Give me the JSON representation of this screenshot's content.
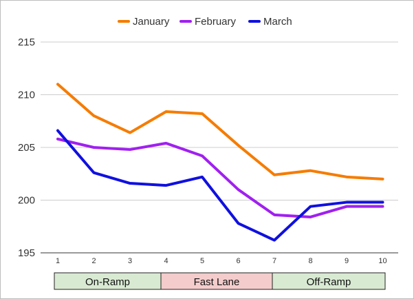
{
  "chart_data": {
    "type": "line",
    "title": "",
    "xlabel": "",
    "ylabel": "",
    "x": [
      1,
      2,
      3,
      4,
      5,
      6,
      7,
      8,
      9,
      10
    ],
    "ylim": [
      195,
      215
    ],
    "yticks": [
      195,
      200,
      205,
      210,
      215
    ],
    "grid": "horizontal",
    "legend": "top-center",
    "series": [
      {
        "name": "January",
        "color": "#f57c00",
        "values": [
          211.0,
          208.0,
          206.4,
          208.4,
          208.2,
          205.2,
          202.4,
          202.8,
          202.2,
          202.0
        ]
      },
      {
        "name": "February",
        "color": "#a020f0",
        "values": [
          205.8,
          205.0,
          204.8,
          205.4,
          204.2,
          201.0,
          198.6,
          198.4,
          199.4,
          199.4
        ]
      },
      {
        "name": "March",
        "color": "#1010e0",
        "values": [
          206.6,
          202.6,
          201.6,
          201.4,
          202.2,
          197.8,
          196.2,
          199.4,
          199.8,
          199.8
        ]
      }
    ],
    "phases": [
      {
        "label": "On-Ramp",
        "from": 1,
        "to": 4,
        "color": "#d9ead3"
      },
      {
        "label": "Fast Lane",
        "from": 4,
        "to": 7,
        "color": "#f4cccc"
      },
      {
        "label": "Off-Ramp",
        "from": 7,
        "to": 10,
        "color": "#d9ead3"
      }
    ]
  }
}
